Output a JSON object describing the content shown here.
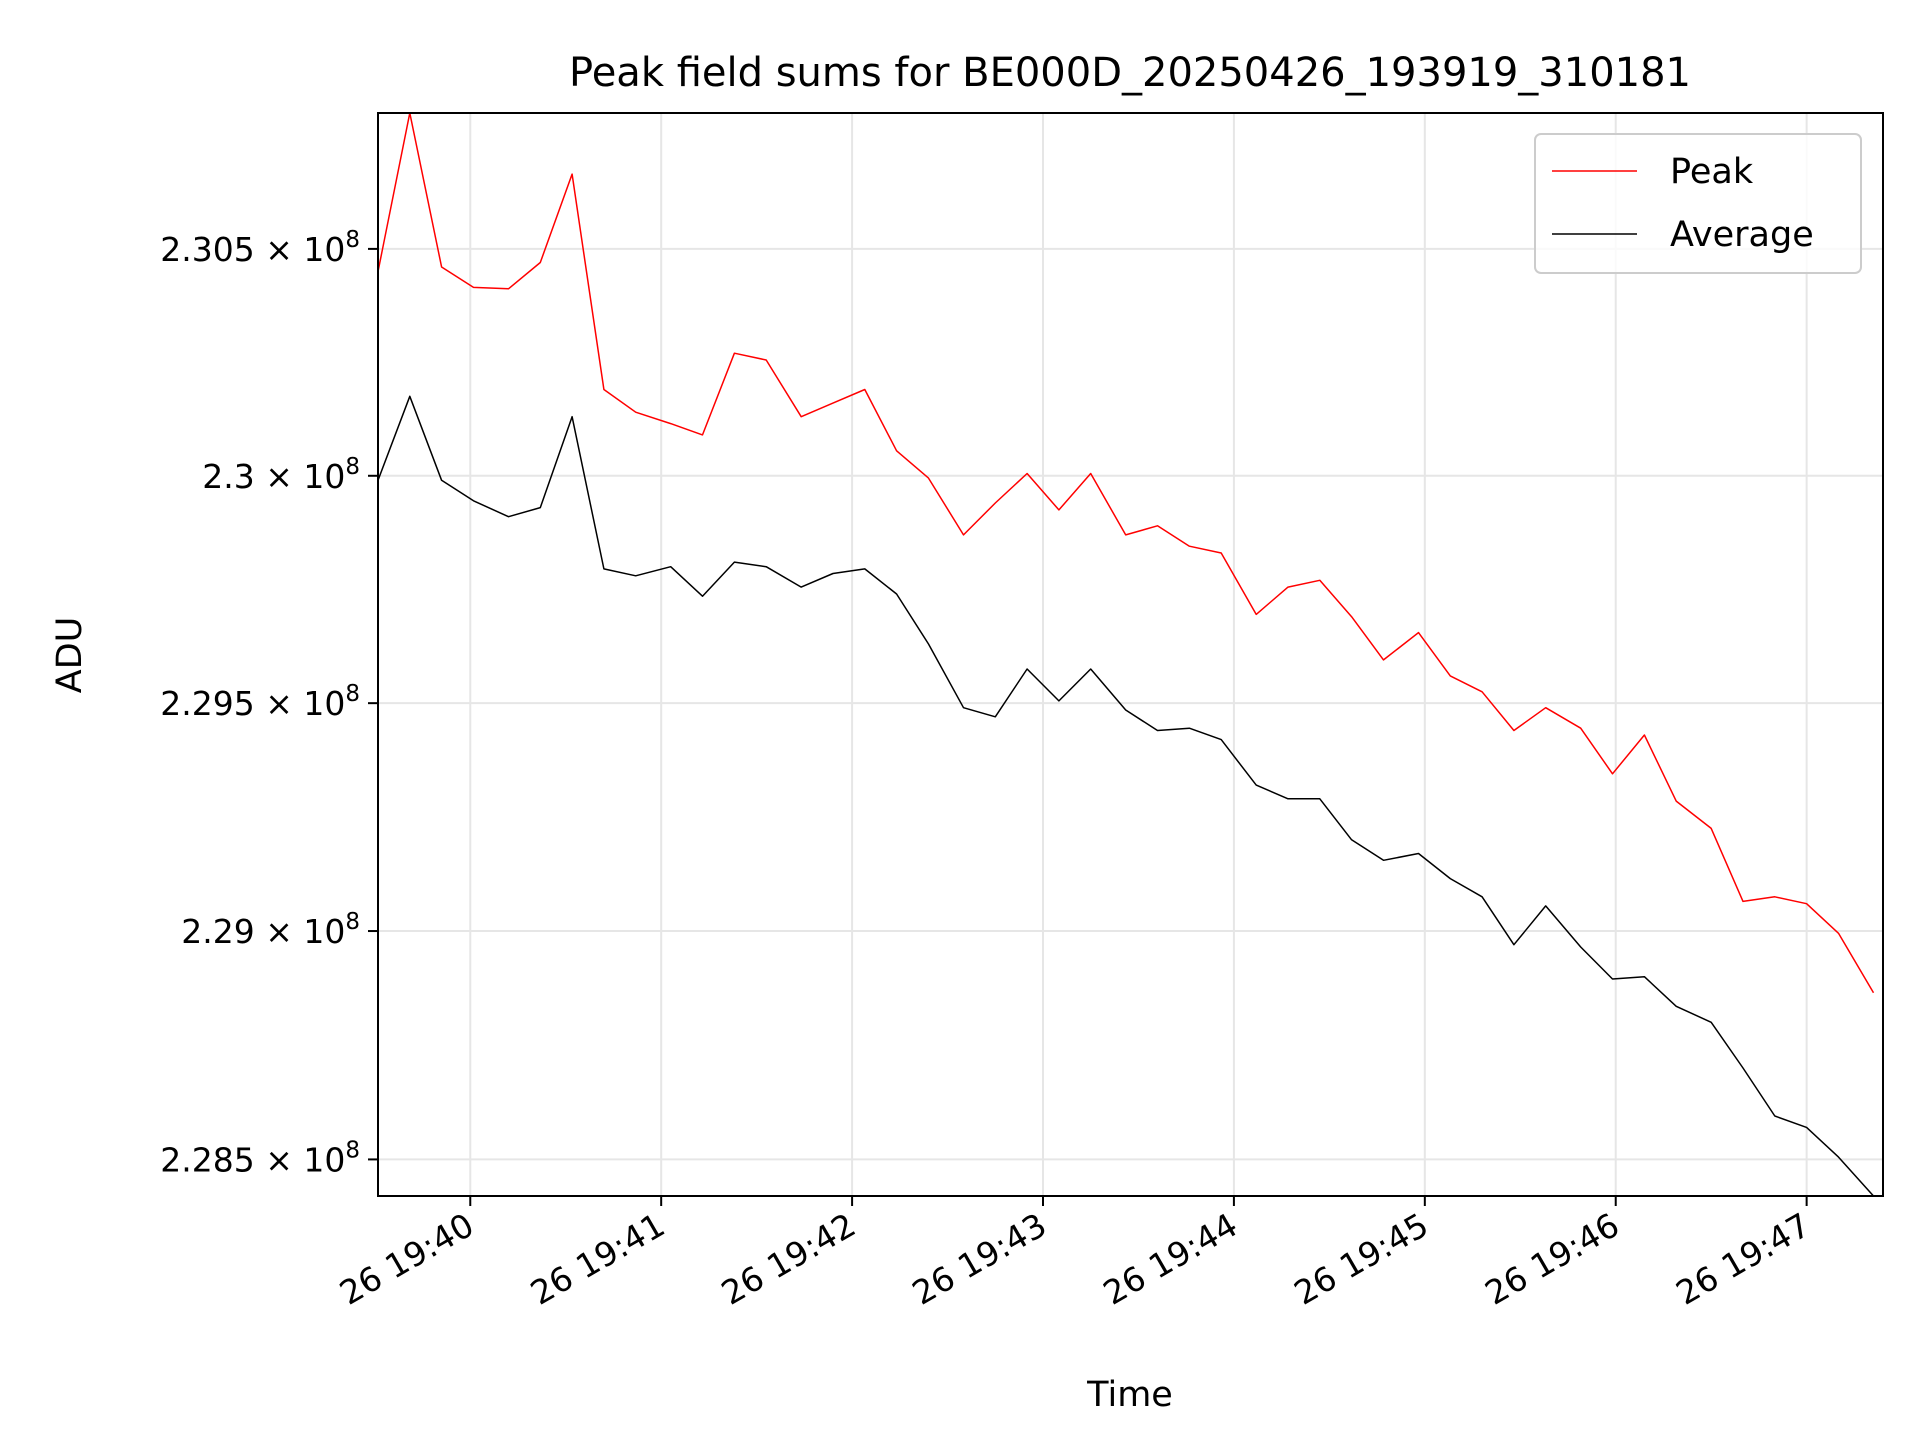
{
  "chart_data": {
    "type": "line",
    "title": "Peak field sums for BE000D_20250426_193919_310181",
    "xlabel": "Time",
    "ylabel": "ADU",
    "log_scale_y": true,
    "grid": true,
    "legend_position": "top-right",
    "xlim": [
      "2025-04-26 19:39:31",
      "2025-04-26 19:47:24"
    ],
    "ylim": [
      228420000,
      230800000
    ],
    "x_ticks": [
      {
        "value": "2025-04-26 19:40:00",
        "label": "26 19:40"
      },
      {
        "value": "2025-04-26 19:41:00",
        "label": "26 19:41"
      },
      {
        "value": "2025-04-26 19:42:00",
        "label": "26 19:42"
      },
      {
        "value": "2025-04-26 19:43:00",
        "label": "26 19:43"
      },
      {
        "value": "2025-04-26 19:44:00",
        "label": "26 19:44"
      },
      {
        "value": "2025-04-26 19:45:00",
        "label": "26 19:45"
      },
      {
        "value": "2025-04-26 19:46:00",
        "label": "26 19:46"
      },
      {
        "value": "2025-04-26 19:47:00",
        "label": "26 19:47"
      }
    ],
    "y_ticks": [
      {
        "value": 228500000,
        "mantissa": "2.285",
        "times": "×",
        "base": "10",
        "exponent": "8"
      },
      {
        "value": 229000000,
        "mantissa": "2.29",
        "times": "×",
        "base": "10",
        "exponent": "8"
      },
      {
        "value": 229500000,
        "mantissa": "2.295",
        "times": "×",
        "base": "10",
        "exponent": "8"
      },
      {
        "value": 230000000,
        "mantissa": "2.3",
        "times": "×",
        "base": "10",
        "exponent": "8"
      },
      {
        "value": 230500000,
        "mantissa": "2.305",
        "times": "×",
        "base": "10",
        "exponent": "8"
      }
    ],
    "x": [
      "2025-04-26 19:39:31",
      "2025-04-26 19:39:41",
      "2025-04-26 19:39:51",
      "2025-04-26 19:40:01",
      "2025-04-26 19:40:12",
      "2025-04-26 19:40:22",
      "2025-04-26 19:40:32",
      "2025-04-26 19:40:42",
      "2025-04-26 19:40:52",
      "2025-04-26 19:41:03",
      "2025-04-26 19:41:13",
      "2025-04-26 19:41:23",
      "2025-04-26 19:41:33",
      "2025-04-26 19:41:44",
      "2025-04-26 19:41:54",
      "2025-04-26 19:42:04",
      "2025-04-26 19:42:14",
      "2025-04-26 19:42:24",
      "2025-04-26 19:42:35",
      "2025-04-26 19:42:45",
      "2025-04-26 19:42:55",
      "2025-04-26 19:43:05",
      "2025-04-26 19:43:15",
      "2025-04-26 19:43:26",
      "2025-04-26 19:43:36",
      "2025-04-26 19:43:46",
      "2025-04-26 19:43:56",
      "2025-04-26 19:44:07",
      "2025-04-26 19:44:17",
      "2025-04-26 19:44:27",
      "2025-04-26 19:44:37",
      "2025-04-26 19:44:47",
      "2025-04-26 19:44:58",
      "2025-04-26 19:45:08",
      "2025-04-26 19:45:18",
      "2025-04-26 19:45:28",
      "2025-04-26 19:45:38",
      "2025-04-26 19:45:49",
      "2025-04-26 19:45:59",
      "2025-04-26 19:46:09",
      "2025-04-26 19:46:19",
      "2025-04-26 19:46:30",
      "2025-04-26 19:46:40",
      "2025-04-26 19:46:50",
      "2025-04-26 19:47:00",
      "2025-04-26 19:47:10",
      "2025-04-26 19:47:21"
    ],
    "series": [
      {
        "name": "Peak",
        "color": "#ff0000",
        "values": [
          230450000,
          230800000,
          230460000,
          230415000,
          230412000,
          230470000,
          230665000,
          230190000,
          230140000,
          230115000,
          230090000,
          230270000,
          230255000,
          230130000,
          230160000,
          230190000,
          230055000,
          229995000,
          229870000,
          229940000,
          230005000,
          229925000,
          230005000,
          229870000,
          229890000,
          229845000,
          229830000,
          229695000,
          229755000,
          229770000,
          229690000,
          229595000,
          229655000,
          229560000,
          229525000,
          229440000,
          229490000,
          229445000,
          229345000,
          229430000,
          229285000,
          229225000,
          229065000,
          229075000,
          229060000,
          228995000,
          228865000
        ]
      },
      {
        "name": "Average",
        "color": "#000000",
        "values": [
          229990000,
          230175000,
          229990000,
          229945000,
          229910000,
          229930000,
          230130000,
          229795000,
          229780000,
          229800000,
          229735000,
          229810000,
          229800000,
          229755000,
          229785000,
          229795000,
          229740000,
          229630000,
          229490000,
          229470000,
          229575000,
          229505000,
          229575000,
          229485000,
          229440000,
          229445000,
          229420000,
          229320000,
          229290000,
          229290000,
          229200000,
          229155000,
          229170000,
          229115000,
          229075000,
          228970000,
          229055000,
          228965000,
          228895000,
          228900000,
          228835000,
          228800000,
          228700000,
          228595000,
          228570000,
          228505000,
          228420000
        ]
      }
    ]
  }
}
